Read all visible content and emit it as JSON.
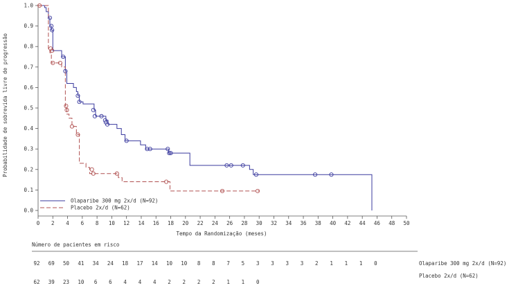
{
  "chart_data": {
    "type": "line",
    "title": "",
    "xlabel": "Tempo da Randomização (meses)",
    "ylabel": "Probabilidade de sobrevida livre de progressão",
    "xlim": [
      0,
      50
    ],
    "ylim": [
      0,
      1
    ],
    "x_ticks": [
      "0",
      "2",
      "4",
      "6",
      "8",
      "10",
      "12",
      "14",
      "16",
      "18",
      "20",
      "22",
      "24",
      "26",
      "28",
      "30",
      "32",
      "34",
      "36",
      "38",
      "40",
      "42",
      "44",
      "46",
      "48",
      "50"
    ],
    "y_ticks": [
      "0.0",
      "0.1",
      "0.2",
      "0.3",
      "0.4",
      "0.5",
      "0.6",
      "0.7",
      "0.8",
      "0.9",
      "1.0"
    ],
    "grid": false,
    "legend_position": "bottom-left",
    "series": [
      {
        "name": "Olaparibe 300 mg 2x/d (N=92)",
        "color": "#3a3a9e",
        "dash": "solid",
        "steps": [
          [
            0,
            1.0
          ],
          [
            0.9,
            0.99
          ],
          [
            1.1,
            0.97
          ],
          [
            1.4,
            0.94
          ],
          [
            1.6,
            0.9
          ],
          [
            1.8,
            0.88
          ],
          [
            2.0,
            0.78
          ],
          [
            3.2,
            0.75
          ],
          [
            3.7,
            0.68
          ],
          [
            3.9,
            0.62
          ],
          [
            4.8,
            0.6
          ],
          [
            5.2,
            0.58
          ],
          [
            5.4,
            0.56
          ],
          [
            5.6,
            0.53
          ],
          [
            6.1,
            0.52
          ],
          [
            7.6,
            0.49
          ],
          [
            7.8,
            0.46
          ],
          [
            9.2,
            0.44
          ],
          [
            9.5,
            0.42
          ],
          [
            10.7,
            0.4
          ],
          [
            11.3,
            0.37
          ],
          [
            11.8,
            0.34
          ],
          [
            13.9,
            0.32
          ],
          [
            14.6,
            0.3
          ],
          [
            17.7,
            0.28
          ],
          [
            20.6,
            0.22
          ],
          [
            28.7,
            0.2
          ],
          [
            29.2,
            0.175
          ],
          [
            45.3,
            0.0
          ]
        ],
        "censored": [
          [
            1.6,
            0.94
          ],
          [
            1.8,
            0.9
          ],
          [
            1.9,
            0.88
          ],
          [
            3.4,
            0.75
          ],
          [
            3.7,
            0.68
          ],
          [
            5.4,
            0.56
          ],
          [
            5.6,
            0.53
          ],
          [
            7.5,
            0.49
          ],
          [
            7.7,
            0.46
          ],
          [
            8.6,
            0.46
          ],
          [
            9.1,
            0.44
          ],
          [
            9.2,
            0.43
          ],
          [
            9.4,
            0.42
          ],
          [
            12.0,
            0.34
          ],
          [
            14.8,
            0.3
          ],
          [
            15.2,
            0.3
          ],
          [
            17.6,
            0.3
          ],
          [
            17.8,
            0.28
          ],
          [
            18.0,
            0.28
          ],
          [
            25.6,
            0.22
          ],
          [
            26.2,
            0.22
          ],
          [
            27.8,
            0.22
          ],
          [
            29.6,
            0.175
          ],
          [
            37.6,
            0.175
          ],
          [
            39.8,
            0.175
          ]
        ]
      },
      {
        "name": "Placebo 2x/d (N=62)",
        "color": "#b05050",
        "dash": "dashed",
        "steps": [
          [
            0,
            1.0
          ],
          [
            1.4,
            0.79
          ],
          [
            1.6,
            0.77
          ],
          [
            1.8,
            0.72
          ],
          [
            3.2,
            0.7
          ],
          [
            3.7,
            0.51
          ],
          [
            3.9,
            0.47
          ],
          [
            4.2,
            0.45
          ],
          [
            4.6,
            0.41
          ],
          [
            5.2,
            0.37
          ],
          [
            5.6,
            0.23
          ],
          [
            6.5,
            0.21
          ],
          [
            7.0,
            0.18
          ],
          [
            10.9,
            0.16
          ],
          [
            11.4,
            0.14
          ],
          [
            17.9,
            0.095
          ],
          [
            30.0,
            0.095
          ]
        ],
        "censored": [
          [
            0.2,
            1.0
          ],
          [
            1.7,
            0.79
          ],
          [
            1.9,
            0.78
          ],
          [
            2.0,
            0.72
          ],
          [
            3.0,
            0.72
          ],
          [
            3.8,
            0.51
          ],
          [
            3.9,
            0.49
          ],
          [
            4.6,
            0.41
          ],
          [
            5.4,
            0.37
          ],
          [
            7.3,
            0.2
          ],
          [
            7.5,
            0.18
          ],
          [
            10.7,
            0.18
          ],
          [
            17.4,
            0.14
          ],
          [
            25.0,
            0.095
          ],
          [
            29.8,
            0.095
          ]
        ]
      }
    ]
  },
  "risk_table": {
    "title": "Número de pacientes em risco",
    "rows": [
      {
        "label": "Olaparibe 300 mg 2x/d (N=92)",
        "values": [
          "92",
          "69",
          "50",
          "41",
          "34",
          "24",
          "18",
          "17",
          "14",
          "10",
          "10",
          "8",
          "8",
          "7",
          "5",
          "3",
          "3",
          "3",
          "3",
          "2",
          "1",
          "1",
          "1",
          "0"
        ]
      },
      {
        "label": "Placebo 2x/d (N=62)",
        "values": [
          "62",
          "39",
          "23",
          "10",
          "6",
          "6",
          "4",
          "4",
          "4",
          "2",
          "2",
          "2",
          "2",
          "1",
          "1",
          "0"
        ]
      }
    ]
  }
}
